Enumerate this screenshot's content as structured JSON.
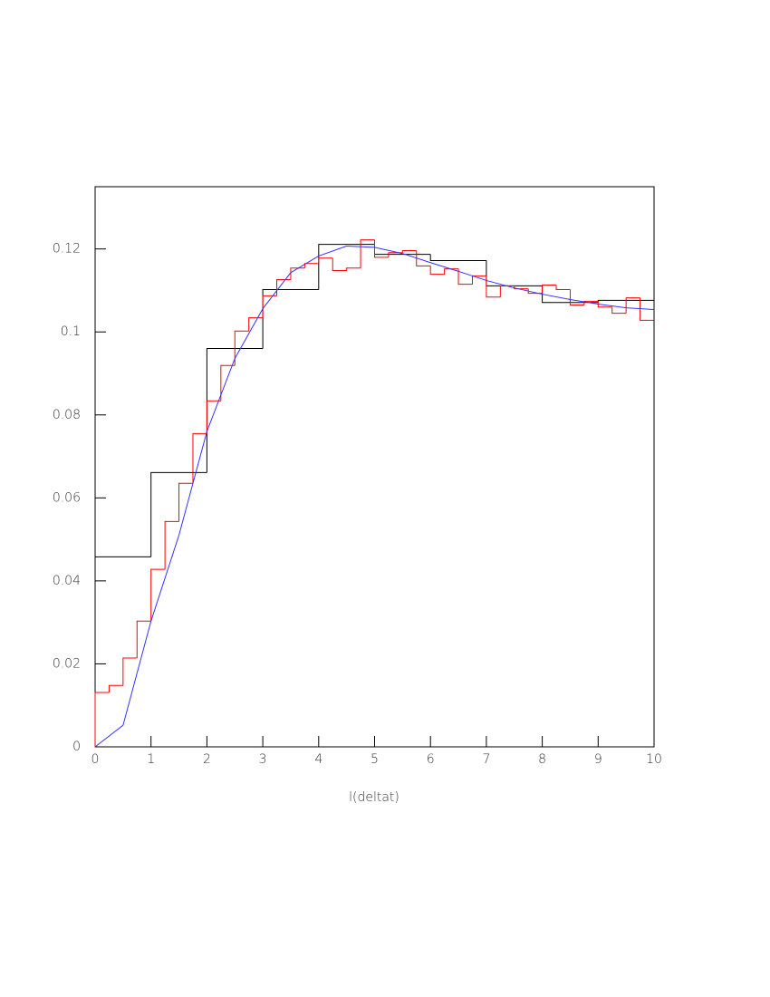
{
  "chart_data": {
    "type": "histogram",
    "xlabel": "l(deltat)",
    "xlim": [
      0,
      10
    ],
    "ylim": [
      0,
      0.135
    ],
    "xticks": [
      0,
      1,
      2,
      3,
      4,
      5,
      6,
      7,
      8,
      9,
      10
    ],
    "yticks": [
      0,
      0.02,
      0.04,
      0.06,
      0.08,
      0.1,
      0.12
    ],
    "series": [
      {
        "type": "histogram",
        "color": "#000000",
        "bins": [
          0,
          1,
          2,
          3,
          4,
          5,
          6,
          7,
          8,
          9,
          10
        ],
        "values": [
          0.0458,
          0.0661,
          0.096,
          0.1102,
          0.1211,
          0.1187,
          0.1172,
          0.1111,
          0.1071,
          0.1076
        ]
      },
      {
        "type": "histogram",
        "color": "#ff0000",
        "bins": [
          0,
          0.25,
          0.5,
          0.75,
          1,
          1.25,
          1.5,
          1.75,
          2,
          2.25,
          2.5,
          2.75,
          3,
          3.25,
          3.5,
          3.75,
          4,
          4.25,
          4.5,
          4.75,
          5,
          5.25,
          5.5,
          5.75,
          6,
          6.25,
          6.5,
          6.75,
          7,
          7.25,
          7.5,
          7.75,
          8,
          8.25,
          8.5,
          8.75,
          9,
          9.25,
          9.5,
          9.75,
          10
        ],
        "values": [
          0.0131,
          0.0148,
          0.0214,
          0.0303,
          0.0428,
          0.0543,
          0.0635,
          0.0755,
          0.0834,
          0.0919,
          0.1002,
          0.1034,
          0.1087,
          0.1126,
          0.1154,
          0.1165,
          0.1178,
          0.1148,
          0.1154,
          0.1222,
          0.118,
          0.1191,
          0.1196,
          0.1159,
          0.1139,
          0.1152,
          0.1115,
          0.1135,
          0.1084,
          0.1111,
          0.1104,
          0.1093,
          0.1113,
          0.1102,
          0.1065,
          0.1074,
          0.106,
          0.1045,
          0.1082,
          0.1028
        ]
      },
      {
        "type": "line",
        "color": "#3333ff",
        "x": [
          0,
          0.5,
          1,
          1.5,
          2,
          2.5,
          3,
          3.5,
          4,
          4.5,
          5,
          5.5,
          6,
          6.5,
          7,
          7.5,
          8,
          8.5,
          9,
          9.5,
          10
        ],
        "values": [
          0,
          0.0052,
          0.0303,
          0.051,
          0.076,
          0.0936,
          0.1056,
          0.1143,
          0.1183,
          0.1207,
          0.1204,
          0.1189,
          0.1167,
          0.1146,
          0.1124,
          0.1106,
          0.1091,
          0.1078,
          0.1067,
          0.1058,
          0.1054
        ]
      }
    ]
  }
}
